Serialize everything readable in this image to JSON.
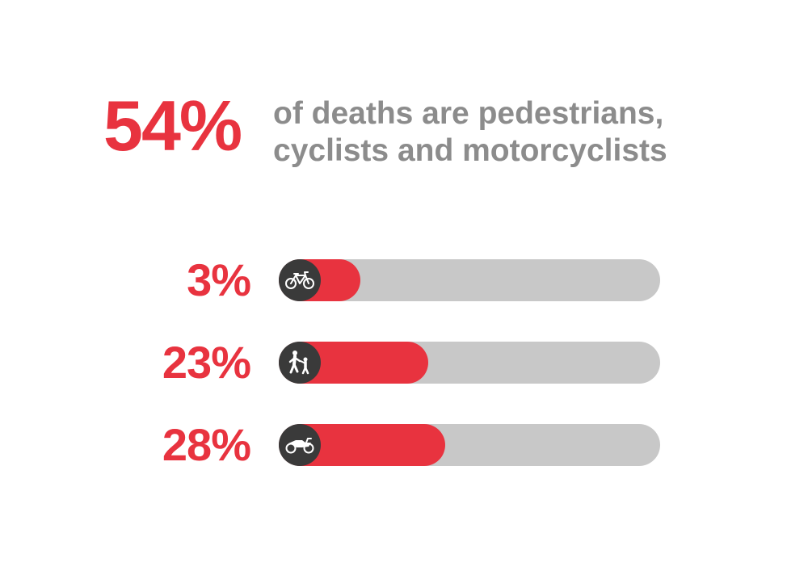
{
  "headline": {
    "value": "54%",
    "text_line1": "of deaths are pedestrians,",
    "text_line2": "cyclists and motorcyclists"
  },
  "colors": {
    "accent": "#e8333f",
    "text_gray": "#8c8c8c",
    "track": "#c8c8c8",
    "icon_bg": "#3a3a3a"
  },
  "chart_data": {
    "type": "bar",
    "orientation": "horizontal",
    "categories": [
      "cyclists",
      "pedestrians",
      "motorcyclists"
    ],
    "values": [
      3,
      23,
      28
    ],
    "value_labels": [
      "3%",
      "23%",
      "28%"
    ],
    "icons": [
      "bicycle-icon",
      "pedestrian-icon",
      "motorcycle-icon"
    ],
    "xlim": [
      0,
      100
    ]
  }
}
